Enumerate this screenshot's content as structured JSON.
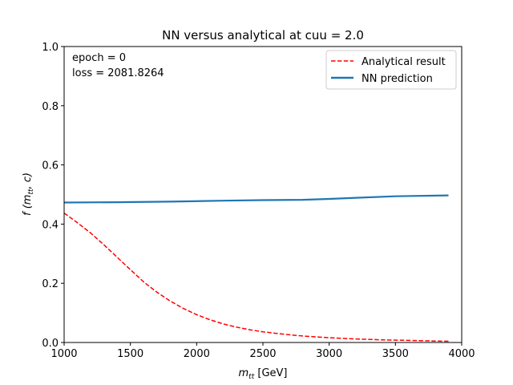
{
  "chart_data": {
    "type": "line",
    "title": "NN versus analytical at cuu = 2.0",
    "xlabel": {
      "base": "m",
      "sub": "tt",
      "unit": " [GeV]"
    },
    "ylabel": {
      "prefix": "f (",
      "m": "m",
      "sub": "tt",
      "suffix": ", c)"
    },
    "xlim": [
      1000,
      4000
    ],
    "ylim": [
      0.0,
      1.0
    ],
    "xticks": [
      1000,
      1500,
      2000,
      2500,
      3000,
      3500,
      4000
    ],
    "yticks": [
      0.0,
      0.2,
      0.4,
      0.6,
      0.8,
      1.0
    ],
    "legend_position": "top-right",
    "annotations": [
      "epoch = 0",
      "loss = 2081.8264"
    ],
    "series": [
      {
        "name": "Analytical result",
        "style": "dashed",
        "color": "#ff0000",
        "x": [
          1000,
          1100,
          1200,
          1300,
          1400,
          1500,
          1600,
          1700,
          1800,
          1900,
          2000,
          2100,
          2200,
          2300,
          2400,
          2500,
          2600,
          2700,
          2800,
          2900,
          3000,
          3200,
          3400,
          3600,
          3800,
          3900
        ],
        "y": [
          0.437,
          0.405,
          0.37,
          0.33,
          0.288,
          0.246,
          0.205,
          0.17,
          0.14,
          0.115,
          0.094,
          0.077,
          0.063,
          0.052,
          0.043,
          0.036,
          0.031,
          0.026,
          0.022,
          0.019,
          0.016,
          0.012,
          0.009,
          0.007,
          0.005,
          0.004
        ]
      },
      {
        "name": "NN prediction",
        "style": "solid",
        "color": "#1f77b4",
        "x": [
          1000,
          1400,
          1800,
          2200,
          2500,
          2800,
          3000,
          3200,
          3500,
          3900
        ],
        "y": [
          0.473,
          0.474,
          0.476,
          0.479,
          0.481,
          0.482,
          0.485,
          0.489,
          0.494,
          0.497
        ]
      }
    ]
  }
}
